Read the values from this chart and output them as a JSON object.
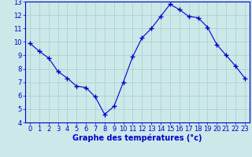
{
  "x": [
    0,
    1,
    2,
    3,
    4,
    5,
    6,
    7,
    8,
    9,
    10,
    11,
    12,
    13,
    14,
    15,
    16,
    17,
    18,
    19,
    20,
    21,
    22,
    23
  ],
  "y": [
    9.9,
    9.3,
    8.8,
    7.8,
    7.3,
    6.7,
    6.6,
    5.9,
    4.6,
    5.2,
    7.0,
    8.9,
    10.3,
    11.0,
    11.9,
    12.8,
    12.4,
    11.9,
    11.8,
    11.1,
    9.8,
    9.0,
    8.2,
    7.3
  ],
  "line_color": "#0000cc",
  "marker": "+",
  "marker_size": 4,
  "bg_color": "#cce8e8",
  "grid_color": "#aacccc",
  "xlabel": "Graphe des températures (°c)",
  "xlim_min": -0.5,
  "xlim_max": 23.5,
  "ylim": [
    4,
    13
  ],
  "yticks": [
    4,
    5,
    6,
    7,
    8,
    9,
    10,
    11,
    12,
    13
  ],
  "xticks": [
    0,
    1,
    2,
    3,
    4,
    5,
    6,
    7,
    8,
    9,
    10,
    11,
    12,
    13,
    14,
    15,
    16,
    17,
    18,
    19,
    20,
    21,
    22,
    23
  ],
  "tick_label_fontsize": 6,
  "xlabel_fontsize": 7,
  "axis_color": "#0000cc",
  "linewidth": 0.8,
  "marker_linewidth": 1.0
}
